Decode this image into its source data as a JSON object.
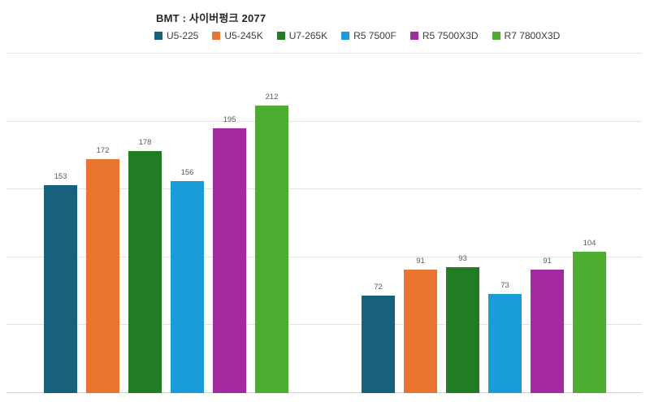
{
  "chart_data": {
    "type": "bar",
    "title": "BMT : 사이버펑크 2077",
    "xlabel": "",
    "ylabel": "",
    "ylim": [
      0,
      250
    ],
    "grid": true,
    "grid_step": 50,
    "legend_position": "top",
    "data_labels": true,
    "axis_tick_labels_visible": false,
    "group_count": 2,
    "categories": [
      "",
      ""
    ],
    "series": [
      {
        "name": "U5-225",
        "color": "#17617f",
        "values": [
          153,
          72
        ]
      },
      {
        "name": "U5-245K",
        "color": "#e8742f",
        "values": [
          172,
          91
        ]
      },
      {
        "name": "U7-265K",
        "color": "#217d24",
        "values": [
          178,
          93
        ]
      },
      {
        "name": "R5 7500F",
        "color": "#189dd9",
        "values": [
          156,
          73
        ]
      },
      {
        "name": "R5 7500X3D",
        "color": "#a42b9e",
        "values": [
          195,
          91
        ]
      },
      {
        "name": "R7 7800X3D",
        "color": "#4ead31",
        "values": [
          212,
          104
        ]
      }
    ],
    "colors": {
      "title_text": "#262626",
      "legend_text": "#3d3d3d",
      "value_label_text": "#595959",
      "gridline": "#e3e3e3",
      "baseline": "#d2d2d2",
      "background": "#ffffff"
    }
  }
}
